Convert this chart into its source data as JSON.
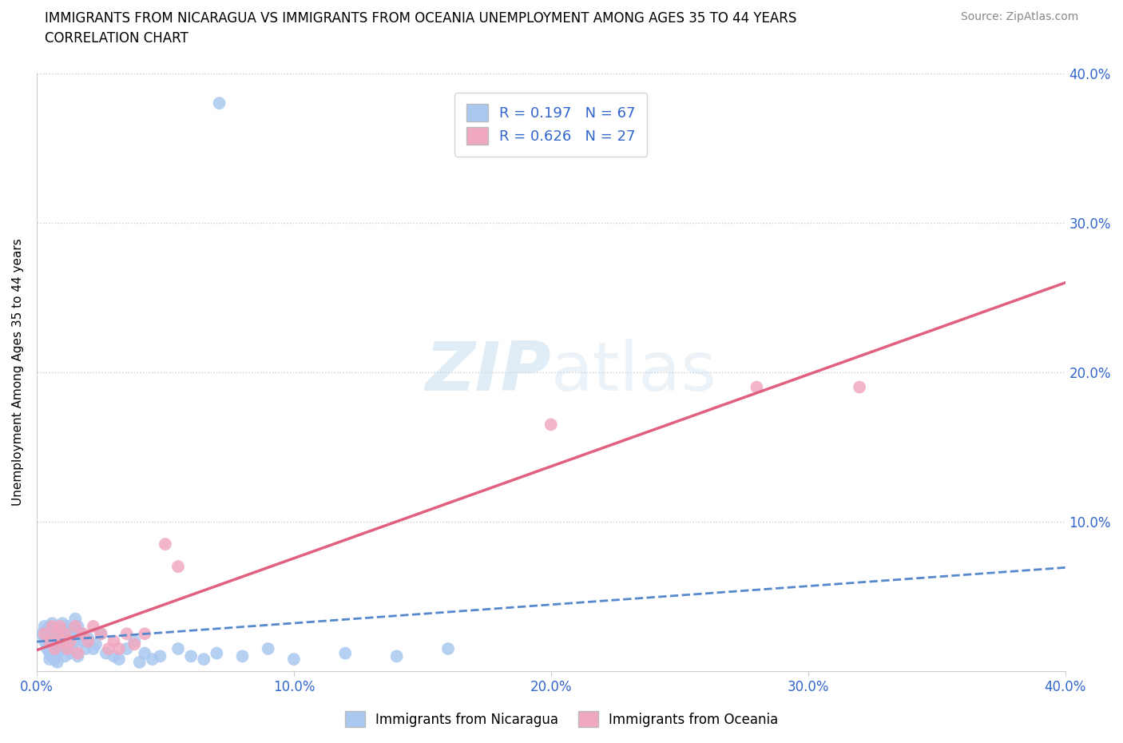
{
  "title_line1": "IMMIGRANTS FROM NICARAGUA VS IMMIGRANTS FROM OCEANIA UNEMPLOYMENT AMONG AGES 35 TO 44 YEARS",
  "title_line2": "CORRELATION CHART",
  "source_text": "Source: ZipAtlas.com",
  "ylabel": "Unemployment Among Ages 35 to 44 years",
  "xlim": [
    0.0,
    0.4
  ],
  "ylim": [
    0.0,
    0.4
  ],
  "xticks": [
    0.0,
    0.1,
    0.2,
    0.3,
    0.4
  ],
  "yticks": [
    0.0,
    0.1,
    0.2,
    0.3,
    0.4
  ],
  "xticklabels": [
    "0.0%",
    "10.0%",
    "20.0%",
    "30.0%",
    "40.0%"
  ],
  "yticklabels_right": [
    "",
    "10.0%",
    "20.0%",
    "30.0%",
    "40.0%"
  ],
  "r_nicaragua": 0.197,
  "n_nicaragua": 67,
  "r_oceania": 0.626,
  "n_oceania": 27,
  "nicaragua_color": "#aac8f0",
  "oceania_color": "#f0a8c0",
  "trendline_nicaragua_color": "#5588cc",
  "trendline_oceania_color": "#e06080",
  "legend_text_color": "#3366cc",
  "watermark_color": "#d8eaf8",
  "background_color": "#ffffff",
  "grid_color": "#cccccc",
  "nicaragua_x": [
    0.002,
    0.003,
    0.003,
    0.004,
    0.004,
    0.004,
    0.005,
    0.005,
    0.005,
    0.005,
    0.005,
    0.006,
    0.006,
    0.006,
    0.006,
    0.007,
    0.007,
    0.007,
    0.007,
    0.008,
    0.008,
    0.008,
    0.008,
    0.009,
    0.009,
    0.01,
    0.01,
    0.01,
    0.011,
    0.011,
    0.012,
    0.012,
    0.013,
    0.013,
    0.014,
    0.014,
    0.015,
    0.015,
    0.016,
    0.016,
    0.017,
    0.018,
    0.019,
    0.02,
    0.022,
    0.023,
    0.025,
    0.027,
    0.03,
    0.032,
    0.035,
    0.038,
    0.04,
    0.042,
    0.045,
    0.048,
    0.055,
    0.06,
    0.065,
    0.07,
    0.08,
    0.09,
    0.1,
    0.12,
    0.14,
    0.16,
    0.071
  ],
  "nicaragua_y": [
    0.025,
    0.03,
    0.02,
    0.028,
    0.022,
    0.015,
    0.03,
    0.025,
    0.018,
    0.012,
    0.008,
    0.032,
    0.022,
    0.015,
    0.01,
    0.028,
    0.02,
    0.012,
    0.008,
    0.025,
    0.018,
    0.012,
    0.006,
    0.03,
    0.015,
    0.032,
    0.022,
    0.015,
    0.025,
    0.01,
    0.03,
    0.018,
    0.025,
    0.012,
    0.028,
    0.015,
    0.035,
    0.02,
    0.03,
    0.01,
    0.025,
    0.02,
    0.015,
    0.022,
    0.015,
    0.018,
    0.025,
    0.012,
    0.01,
    0.008,
    0.015,
    0.02,
    0.006,
    0.012,
    0.008,
    0.01,
    0.015,
    0.01,
    0.008,
    0.012,
    0.01,
    0.015,
    0.008,
    0.012,
    0.01,
    0.015,
    0.38
  ],
  "oceania_x": [
    0.003,
    0.005,
    0.006,
    0.007,
    0.008,
    0.009,
    0.01,
    0.011,
    0.012,
    0.013,
    0.015,
    0.016,
    0.018,
    0.02,
    0.022,
    0.025,
    0.028,
    0.03,
    0.032,
    0.035,
    0.038,
    0.042,
    0.05,
    0.055,
    0.2,
    0.28,
    0.32
  ],
  "oceania_y": [
    0.025,
    0.02,
    0.03,
    0.015,
    0.025,
    0.03,
    0.02,
    0.025,
    0.015,
    0.02,
    0.03,
    0.012,
    0.025,
    0.02,
    0.03,
    0.025,
    0.015,
    0.02,
    0.015,
    0.025,
    0.018,
    0.025,
    0.085,
    0.07,
    0.165,
    0.19,
    0.19
  ],
  "watermark_zip": "ZIP",
  "watermark_atlas": "atlas"
}
